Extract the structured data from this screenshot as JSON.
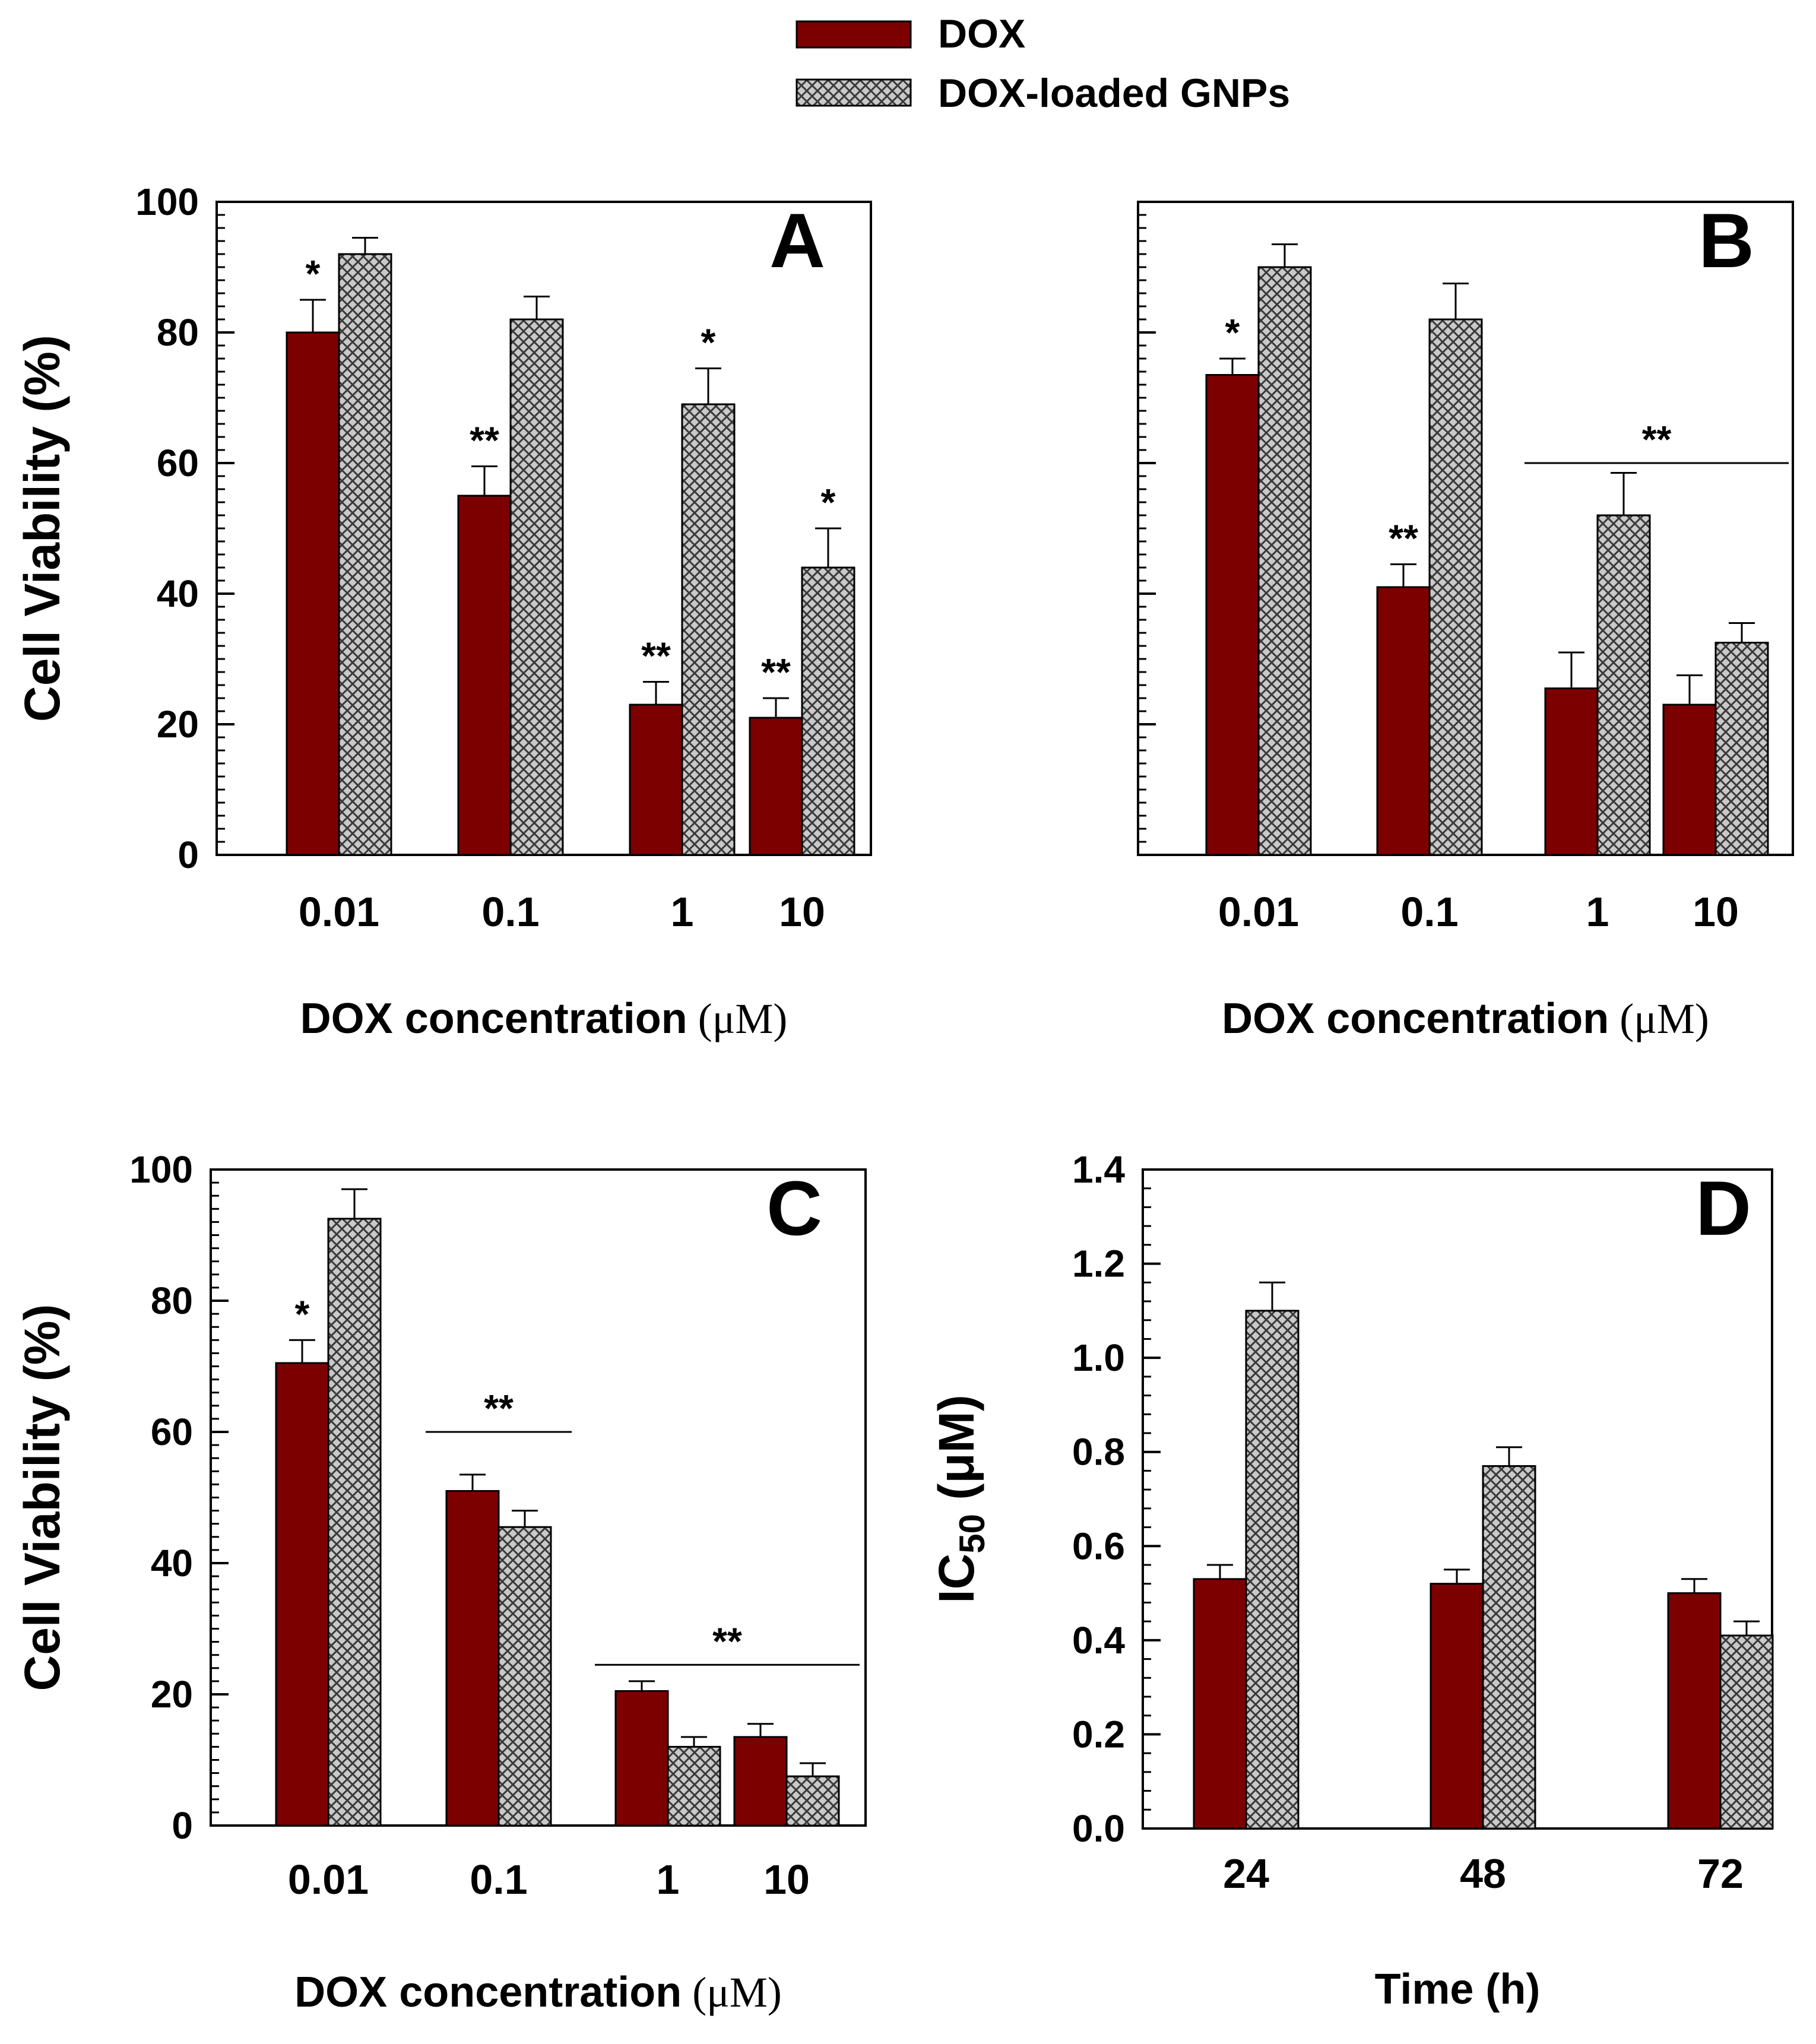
{
  "colors": {
    "dox": "#7d0000",
    "gnp": "#c9c9c9",
    "axis": "#000000"
  },
  "legend": {
    "items": [
      {
        "key": "dox",
        "label": "DOX"
      },
      {
        "key": "gnp",
        "label": "DOX-loaded GNPs"
      }
    ]
  },
  "chart_data": [
    {
      "id": "A",
      "panel_label": "A",
      "type": "bar",
      "xlabel": "DOX concentration",
      "xunit": "(μM)",
      "ylabel": "Cell Viability (%)",
      "ylim": [
        0,
        100
      ],
      "yticks": [
        0,
        20,
        40,
        60,
        80,
        100
      ],
      "ytick_labels": [
        "0",
        "20",
        "40",
        "60",
        "80",
        "100"
      ],
      "show_ytick_labels": true,
      "minor_step": 2,
      "categories": [
        "0.01",
        "0.1",
        "1",
        "10"
      ],
      "series": [
        {
          "name": "DOX",
          "values": [
            80,
            55,
            23,
            21
          ],
          "errors": [
            5,
            4.5,
            3.5,
            3
          ]
        },
        {
          "name": "DOX-loaded GNPs",
          "values": [
            92,
            82,
            69,
            44
          ],
          "errors": [
            2.5,
            3.5,
            5.5,
            6
          ]
        }
      ],
      "annotations": [
        {
          "text": "*",
          "category": 0,
          "series": 0
        },
        {
          "text": "**",
          "category": 1,
          "series": 0
        },
        {
          "text": "**",
          "category": 2,
          "series": 0
        },
        {
          "text": "*",
          "category": 2,
          "series": 1
        },
        {
          "text": "**",
          "category": 3,
          "series": 0
        },
        {
          "text": "*",
          "category": 3,
          "series": 1
        }
      ],
      "group_annotations": []
    },
    {
      "id": "B",
      "panel_label": "B",
      "type": "bar",
      "xlabel": "DOX concentration",
      "xunit": "(μM)",
      "ylabel": "",
      "ylim": [
        0,
        100
      ],
      "yticks": [
        0,
        20,
        40,
        60,
        80,
        100
      ],
      "ytick_labels": [],
      "show_ytick_labels": false,
      "minor_step": 2,
      "categories": [
        "0.01",
        "0.1",
        "1",
        "10"
      ],
      "series": [
        {
          "name": "DOX",
          "values": [
            73.5,
            41,
            25.5,
            23
          ],
          "errors": [
            2.5,
            3.5,
            5.5,
            4.5
          ]
        },
        {
          "name": "DOX-loaded GNPs",
          "values": [
            90,
            82,
            52,
            32.5
          ],
          "errors": [
            3.5,
            5.5,
            6.5,
            3
          ]
        }
      ],
      "annotations": [
        {
          "text": "*",
          "category": 0,
          "series": 0
        },
        {
          "text": "**",
          "category": 1,
          "series": 0
        }
      ],
      "group_annotations": [
        {
          "text": "**",
          "from": 2,
          "to": 3,
          "y": 60
        }
      ]
    },
    {
      "id": "C",
      "panel_label": "C",
      "type": "bar",
      "xlabel": "DOX concentration",
      "xunit": "(μM)",
      "ylabel": "Cell Viability (%)",
      "ylim": [
        0,
        100
      ],
      "yticks": [
        0,
        20,
        40,
        60,
        80,
        100
      ],
      "ytick_labels": [
        "0",
        "20",
        "40",
        "60",
        "80",
        "100"
      ],
      "show_ytick_labels": true,
      "minor_step": 2,
      "categories": [
        "0.01",
        "0.1",
        "1",
        "10"
      ],
      "series": [
        {
          "name": "DOX",
          "values": [
            70.5,
            51,
            20.5,
            13.5
          ],
          "errors": [
            3.5,
            2.5,
            1.5,
            2
          ]
        },
        {
          "name": "DOX-loaded GNPs",
          "values": [
            92.5,
            45.5,
            12,
            7.5
          ],
          "errors": [
            4.5,
            2.5,
            1.5,
            2
          ]
        }
      ],
      "annotations": [
        {
          "text": "*",
          "category": 0,
          "series": 0
        }
      ],
      "group_annotations": [
        {
          "text": "**",
          "from": 1,
          "to": 1,
          "y": 60
        },
        {
          "text": "**",
          "from": 2,
          "to": 3,
          "y": 24.5
        }
      ]
    },
    {
      "id": "D",
      "panel_label": "D",
      "type": "bar",
      "xlabel": "Time (h)",
      "xunit": "",
      "ylabel": "IC50 (μM)",
      "ylabel_parts": {
        "pre": "IC",
        "sub": "50",
        "unit": "(μM)"
      },
      "ylim": [
        0,
        1.4
      ],
      "yticks": [
        0,
        0.2,
        0.4,
        0.6,
        0.8,
        1.0,
        1.2,
        1.4
      ],
      "ytick_labels": [
        "0.0",
        "0.2",
        "0.4",
        "0.6",
        "0.8",
        "1.0",
        "1.2",
        "1.4"
      ],
      "show_ytick_labels": true,
      "minor_step": 0.04,
      "categories": [
        "24",
        "48",
        "72"
      ],
      "series": [
        {
          "name": "DOX",
          "values": [
            0.53,
            0.52,
            0.5
          ],
          "errors": [
            0.03,
            0.03,
            0.03
          ]
        },
        {
          "name": "DOX-loaded GNPs",
          "values": [
            1.1,
            0.77,
            0.41
          ],
          "errors": [
            0.06,
            0.04,
            0.03
          ]
        }
      ],
      "annotations": [],
      "group_annotations": []
    }
  ]
}
